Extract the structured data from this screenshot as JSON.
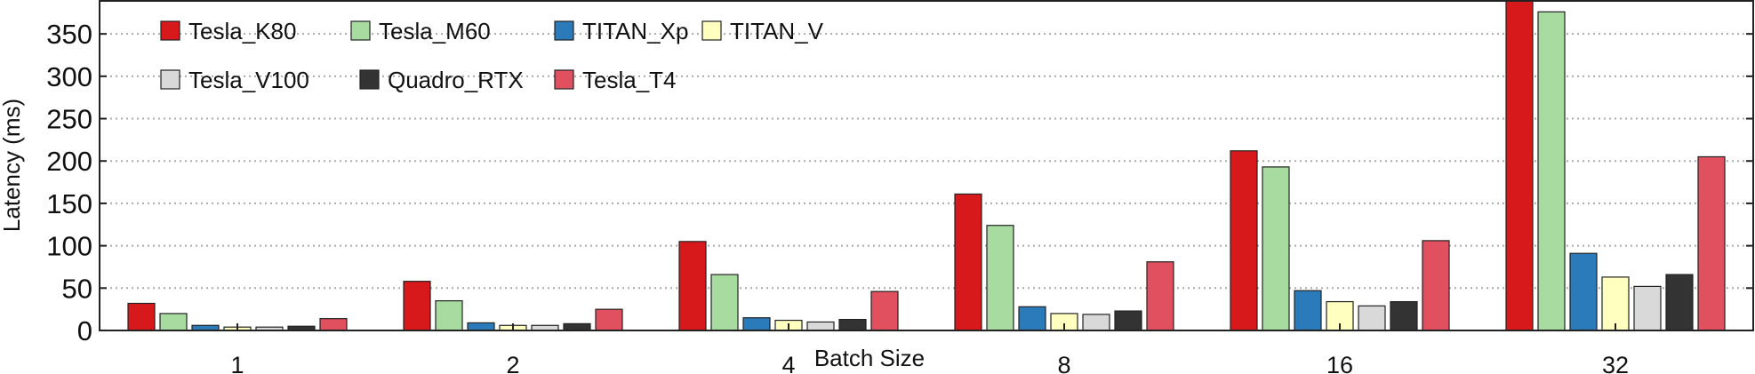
{
  "chart_data": {
    "type": "bar",
    "title": "",
    "xlabel": "Batch Size",
    "ylabel": "Latency (ms)",
    "categories": [
      "1",
      "2",
      "4",
      "8",
      "16",
      "32"
    ],
    "ylim": [
      0,
      390
    ],
    "yticks": [
      0,
      50,
      100,
      150,
      200,
      250,
      300,
      350
    ],
    "grid": "horizontal dotted",
    "legend_placement": "top-left",
    "series": [
      {
        "name": "Tesla_K80",
        "color": "#d7191c",
        "values": [
          32,
          58,
          105,
          161,
          212,
          395
        ]
      },
      {
        "name": "Tesla_M60",
        "color": "#a8dba0",
        "values": [
          20,
          35,
          66,
          124,
          193,
          376
        ]
      },
      {
        "name": "TITAN_Xp",
        "color": "#2b7bba",
        "values": [
          6,
          9,
          15,
          28,
          47,
          91
        ]
      },
      {
        "name": "TITAN_V",
        "color": "#ffffbf",
        "values": [
          4,
          6,
          12,
          20,
          34,
          63
        ]
      },
      {
        "name": "Tesla_V100",
        "color": "#d9d9d9",
        "values": [
          4,
          6,
          10,
          19,
          29,
          52
        ]
      },
      {
        "name": "Quadro_RTX",
        "color": "#333333",
        "values": [
          5,
          8,
          13,
          23,
          34,
          66
        ]
      },
      {
        "name": "Tesla_T4",
        "color": "#e0505e",
        "values": [
          14,
          25,
          46,
          81,
          106,
          205
        ]
      }
    ]
  }
}
